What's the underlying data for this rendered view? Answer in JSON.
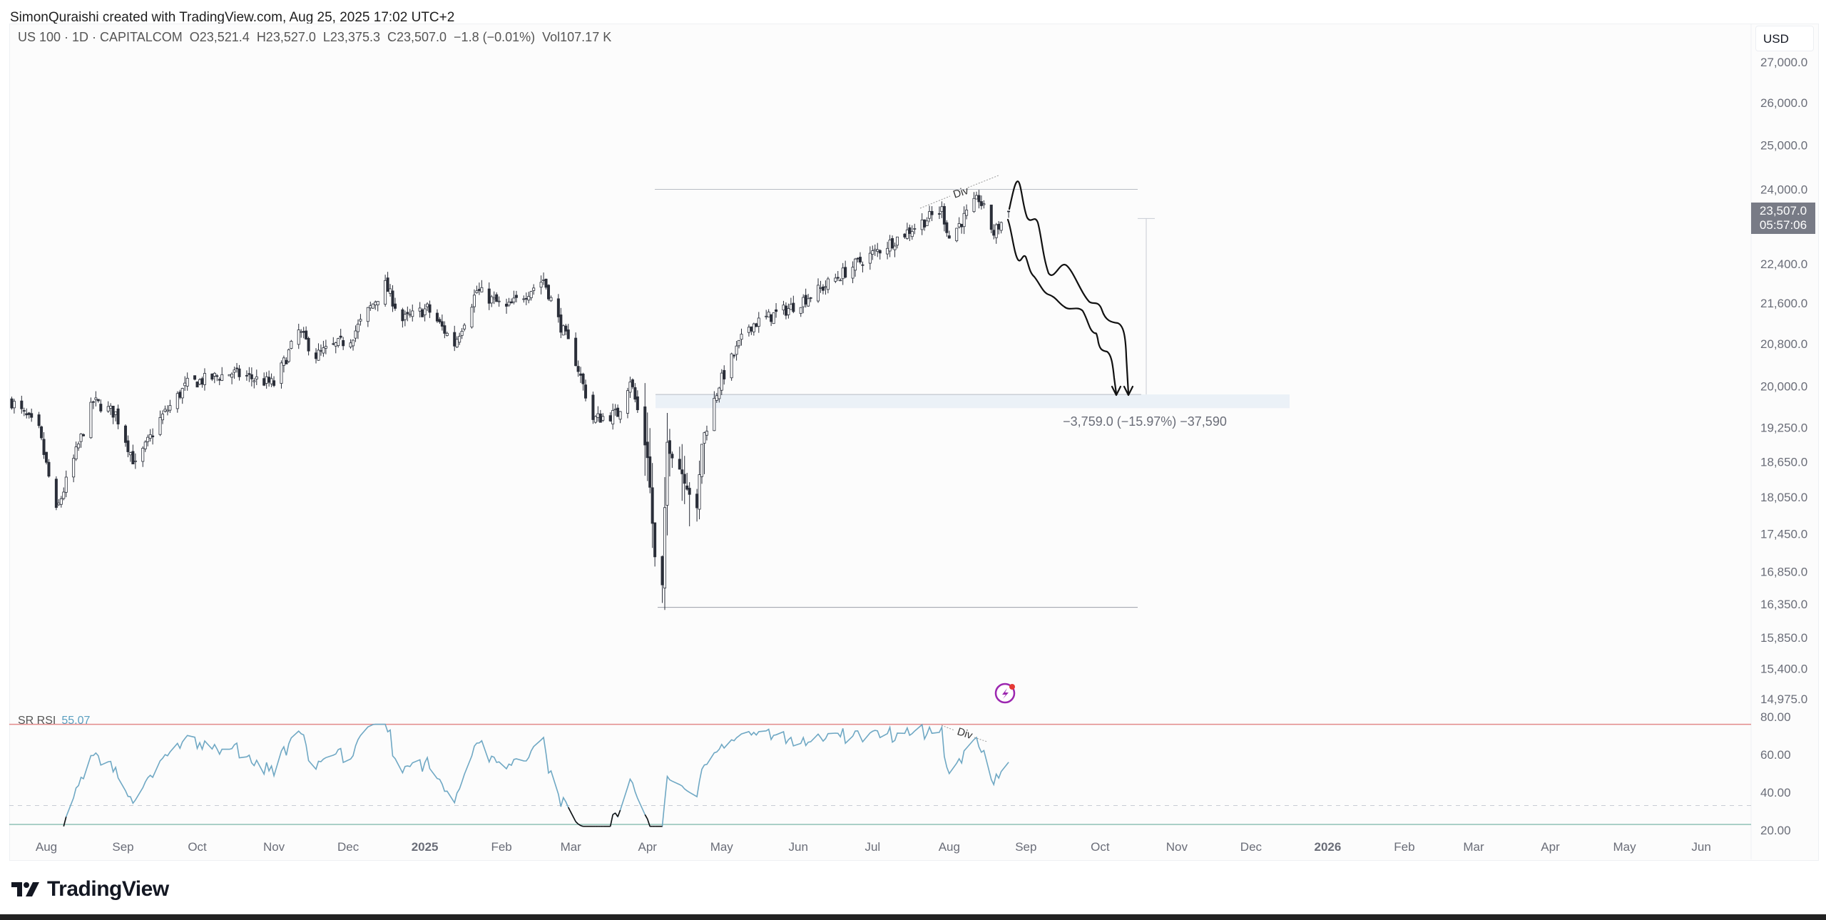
{
  "caption": "SimonQuraishi created with TradingView.com, Aug 25, 2025 17:02 UTC+2",
  "legend": {
    "symbol": "US 100 · 1D · CAPITALCOM",
    "open": "O23,521.4",
    "high": "H23,527.0",
    "low": "L23,375.3",
    "close": "C23,507.0",
    "change": "−1.8 (−0.01%)",
    "volume": "Vol107.17 K"
  },
  "currency": "USD",
  "last_price": {
    "price": "23,507.0",
    "countdown": "05:57:06"
  },
  "measure_label": "−3,759.0 (−15.97%) −37,590",
  "annotations": {
    "price_div": "Div",
    "rsi_div": "Div"
  },
  "rsi": {
    "name": "SR RSI",
    "value": "55.07"
  },
  "logo": "TradingView",
  "colors": {
    "rsi_line": "#6fa8c4",
    "upper_band": "#e28a8a",
    "lower_band": "#8fc1b5",
    "candle": "#2a2e39",
    "alert": "#9c27b0"
  },
  "chart_data": {
    "type": "candlestick",
    "title": "US 100 · 1D · CAPITALCOM",
    "scale": "log",
    "ylim": [
      14975,
      27000
    ],
    "y_ticks": [
      {
        "value": 27000,
        "label": "27,000.0"
      },
      {
        "value": 26000,
        "label": "26,000.0"
      },
      {
        "value": 25000,
        "label": "25,000.0"
      },
      {
        "value": 24000,
        "label": "24,000.0"
      },
      {
        "value": 22400,
        "label": "22,400.0"
      },
      {
        "value": 21600,
        "label": "21,600.0"
      },
      {
        "value": 20800,
        "label": "20,800.0"
      },
      {
        "value": 20000,
        "label": "20,000.0"
      },
      {
        "value": 19250,
        "label": "19,250.0"
      },
      {
        "value": 18650,
        "label": "18,650.0"
      },
      {
        "value": 18050,
        "label": "18,050.0"
      },
      {
        "value": 17450,
        "label": "17,450.0"
      },
      {
        "value": 16850,
        "label": "16,850.0"
      },
      {
        "value": 16350,
        "label": "16,350.0"
      },
      {
        "value": 15850,
        "label": "15,850.0"
      },
      {
        "value": 15400,
        "label": "15,400.0"
      },
      {
        "value": 14975,
        "label": "14,975.0"
      }
    ],
    "x_ticks": [
      {
        "date": "2024-08-01",
        "label": "Aug"
      },
      {
        "date": "2024-09-01",
        "label": "Sep"
      },
      {
        "date": "2024-10-01",
        "label": "Oct"
      },
      {
        "date": "2024-11-01",
        "label": "Nov"
      },
      {
        "date": "2024-12-01",
        "label": "Dec"
      },
      {
        "date": "2025-01-01",
        "label": "2025",
        "bold": true
      },
      {
        "date": "2025-02-01",
        "label": "Feb"
      },
      {
        "date": "2025-03-01",
        "label": "Mar"
      },
      {
        "date": "2025-04-01",
        "label": "Apr"
      },
      {
        "date": "2025-05-01",
        "label": "May"
      },
      {
        "date": "2025-06-01",
        "label": "Jun"
      },
      {
        "date": "2025-07-01",
        "label": "Jul"
      },
      {
        "date": "2025-08-01",
        "label": "Aug"
      },
      {
        "date": "2025-09-01",
        "label": "Sep"
      },
      {
        "date": "2025-10-01",
        "label": "Oct"
      },
      {
        "date": "2025-11-01",
        "label": "Nov"
      },
      {
        "date": "2025-12-01",
        "label": "Dec"
      },
      {
        "date": "2026-01-01",
        "label": "2026",
        "bold": true
      },
      {
        "date": "2026-02-01",
        "label": "Feb"
      },
      {
        "date": "2026-03-01",
        "label": "Mar"
      },
      {
        "date": "2026-04-01",
        "label": "Apr"
      },
      {
        "date": "2026-05-01",
        "label": "May"
      },
      {
        "date": "2026-06-01",
        "label": "Jun"
      }
    ],
    "close_anchors": [
      [
        "2024-07-18",
        19720
      ],
      [
        "2024-07-29",
        19190
      ],
      [
        "2024-08-05",
        17790
      ],
      [
        "2024-08-12",
        18680
      ],
      [
        "2024-08-20",
        19720
      ],
      [
        "2024-08-29",
        19500
      ],
      [
        "2024-09-06",
        18580
      ],
      [
        "2024-09-16",
        19400
      ],
      [
        "2024-09-27",
        20040
      ],
      [
        "2024-10-15",
        20250
      ],
      [
        "2024-11-01",
        20040
      ],
      [
        "2024-11-11",
        21040
      ],
      [
        "2024-11-18",
        20580
      ],
      [
        "2024-12-02",
        20910
      ],
      [
        "2024-12-16",
        21960
      ],
      [
        "2024-12-23",
        21260
      ],
      [
        "2025-01-02",
        21490
      ],
      [
        "2025-01-13",
        20800
      ],
      [
        "2025-01-22",
        21850
      ],
      [
        "2025-02-03",
        21490
      ],
      [
        "2025-02-18",
        22080
      ],
      [
        "2025-02-24",
        21260
      ],
      [
        "2025-03-03",
        20480
      ],
      [
        "2025-03-10",
        19400
      ],
      [
        "2025-03-20",
        19500
      ],
      [
        "2025-03-25",
        20140
      ],
      [
        "2025-04-01",
        18780
      ],
      [
        "2025-04-04",
        17040
      ],
      [
        "2025-04-07",
        16590
      ],
      [
        "2025-04-09",
        18980
      ],
      [
        "2025-04-16",
        18380
      ],
      [
        "2025-04-21",
        17790
      ],
      [
        "2025-04-23",
        18980
      ],
      [
        "2025-04-30",
        20040
      ],
      [
        "2025-05-12",
        21150
      ],
      [
        "2025-05-28",
        21490
      ],
      [
        "2025-06-09",
        21850
      ],
      [
        "2025-06-26",
        22450
      ],
      [
        "2025-07-07",
        22800
      ],
      [
        "2025-07-18",
        23180
      ],
      [
        "2025-07-29",
        23550
      ],
      [
        "2025-08-01",
        22950
      ],
      [
        "2025-08-13",
        23800
      ],
      [
        "2025-08-19",
        23040
      ],
      [
        "2025-08-25",
        23507
      ]
    ],
    "drawings": {
      "range_high": 24000,
      "range_low": 16300,
      "target_zone": [
        19600,
        19850
      ],
      "measure_from": 23360
    },
    "rsi_levels": {
      "upper": 76,
      "mid": 33,
      "lower": 23
    },
    "rsi_ticks": [
      {
        "value": 80,
        "label": "80.00"
      },
      {
        "value": 60,
        "label": "60.00"
      },
      {
        "value": 40,
        "label": "40.00"
      },
      {
        "value": 20,
        "label": "20.00"
      }
    ]
  }
}
